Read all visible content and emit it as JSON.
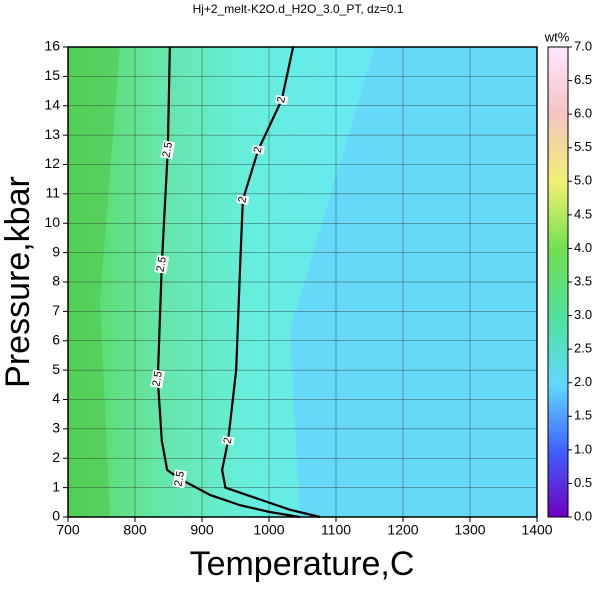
{
  "chart_data": {
    "type": "contour",
    "title": "Hj+2_melt-K2O.d_H2O_3.0_PT, dz=0.1",
    "x_label": "Temperature,C",
    "y_label": "Pressure,kbar",
    "colorbar_label": "wt%",
    "xlim": [
      700,
      1400
    ],
    "ylim": [
      0,
      16
    ],
    "xticks": [
      700,
      800,
      900,
      1000,
      1100,
      1200,
      1300,
      1400
    ],
    "yticks": [
      0,
      1,
      2,
      3,
      4,
      5,
      6,
      7,
      8,
      9,
      10,
      11,
      12,
      13,
      14,
      15,
      16
    ],
    "grid": true,
    "clim": [
      0,
      7
    ],
    "cticks": [
      {
        "value": 0,
        "label": "0.0"
      },
      0.5,
      {
        "value": 1,
        "label": "1.0"
      },
      1.5,
      {
        "value": 2,
        "label": "2.0"
      },
      2.5,
      {
        "value": 3,
        "label": "3.0"
      },
      3.5,
      {
        "value": 4,
        "label": "4.0"
      },
      4.5,
      {
        "value": 5,
        "label": "5.0"
      },
      5.5,
      {
        "value": 6,
        "label": "6.0"
      },
      6.5,
      {
        "value": 7,
        "label": "7.0"
      }
    ],
    "contours": [
      {
        "level": 2.5,
        "color": "#000000",
        "x": [
          852,
          849,
          840,
          834,
          840,
          848,
          867,
          912,
          957,
          1001,
          1046
        ],
        "y": [
          16,
          12.5,
          8.6,
          4.7,
          2.6,
          1.6,
          1.3,
          0.75,
          0.4,
          0.17,
          0
        ]
      },
      {
        "level": 2,
        "color": "#000000",
        "x": [
          1036,
          1019,
          984,
          961,
          957,
          951,
          939,
          930,
          935,
          986,
          1031,
          1076
        ],
        "y": [
          16,
          14.2,
          12.5,
          10.8,
          8.6,
          5,
          2.6,
          1.6,
          1.0,
          0.6,
          0.25,
          0
        ]
      }
    ]
  }
}
